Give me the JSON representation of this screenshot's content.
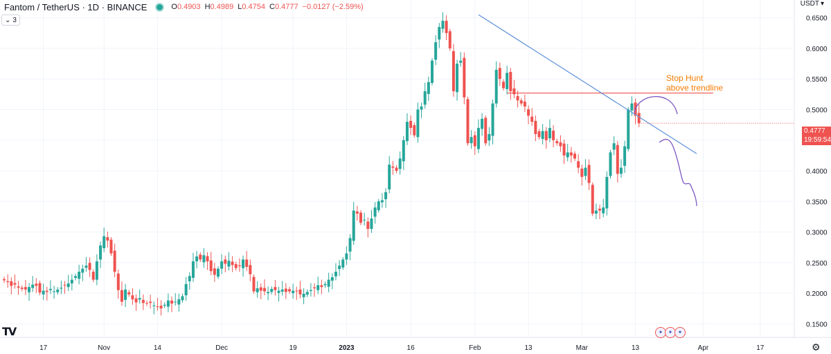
{
  "header": {
    "title": "Fantom / TetherUS · 1D · BINANCE",
    "ohlc": [
      {
        "k": "O",
        "v": "0.4903"
      },
      {
        "k": "H",
        "v": "0.4989"
      },
      {
        "k": "L",
        "v": "0.4754"
      },
      {
        "k": "C",
        "v": "0.4777"
      }
    ],
    "change": "−0.0127 (−2.59%)",
    "indicator_count": "3",
    "currency": "USDT"
  },
  "last_price": {
    "price": "0.4777",
    "countdown": "19:59:54"
  },
  "colors": {
    "up": "#26a69a",
    "down": "#ef5350",
    "trendline": "#5b8fd9",
    "hline": "#ef5350",
    "drawing": "#7e57c2",
    "annotation": "#f57c00"
  },
  "chart_data": {
    "type": "candlestick",
    "title": "Fantom / TetherUS · 1D · BINANCE",
    "ylim": [
      0.13,
      0.67
    ],
    "y_ticks": [
      "0.6500",
      "0.6000",
      "0.5500",
      "0.5000",
      "0.4500",
      "0.4000",
      "0.3500",
      "0.3000",
      "0.2500",
      "0.2000",
      "0.1500"
    ],
    "x_ticks": [
      "17",
      "Nov",
      "14",
      "Dec",
      "19",
      "2023",
      "16",
      "Feb",
      "13",
      "Mar",
      "13",
      "Apr",
      "17"
    ],
    "grid": true,
    "annotations": [
      {
        "text": "Stop Hunt",
        "color": "#f57c00"
      },
      {
        "text": "above trendline",
        "color": "#f57c00"
      }
    ],
    "horizontal_line": {
      "price": 0.527
    },
    "trendline": {
      "from_price": 0.655,
      "to_price": 0.428
    },
    "close": [
      0.221,
      0.218,
      0.212,
      0.214,
      0.209,
      0.207,
      0.206,
      0.21,
      0.214,
      0.212,
      0.201,
      0.204,
      0.202,
      0.207,
      0.203,
      0.206,
      0.209,
      0.213,
      0.216,
      0.222,
      0.228,
      0.235,
      0.24,
      0.245,
      0.238,
      0.222,
      0.252,
      0.278,
      0.293,
      0.286,
      0.265,
      0.235,
      0.205,
      0.186,
      0.206,
      0.198,
      0.19,
      0.185,
      0.192,
      0.184,
      0.183,
      0.184,
      0.18,
      0.178,
      0.175,
      0.181,
      0.188,
      0.183,
      0.186,
      0.19,
      0.195,
      0.215,
      0.228,
      0.252,
      0.26,
      0.255,
      0.262,
      0.252,
      0.236,
      0.23,
      0.24,
      0.252,
      0.248,
      0.253,
      0.246,
      0.241,
      0.244,
      0.255,
      0.243,
      0.231,
      0.203,
      0.208,
      0.204,
      0.203,
      0.202,
      0.207,
      0.205,
      0.204,
      0.206,
      0.202,
      0.203,
      0.204,
      0.203,
      0.198,
      0.199,
      0.202,
      0.205,
      0.208,
      0.213,
      0.21,
      0.215,
      0.222,
      0.226,
      0.235,
      0.245,
      0.255,
      0.265,
      0.29,
      0.335,
      0.33,
      0.315,
      0.32,
      0.305,
      0.322,
      0.34,
      0.35,
      0.352,
      0.365,
      0.41,
      0.405,
      0.4,
      0.42,
      0.45,
      0.48,
      0.47,
      0.458,
      0.5,
      0.505,
      0.53,
      0.545,
      0.58,
      0.61,
      0.635,
      0.645,
      0.625,
      0.6,
      0.53,
      0.575,
      0.58,
      0.52,
      0.445,
      0.455,
      0.44,
      0.47,
      0.485,
      0.445,
      0.46,
      0.51,
      0.565,
      0.55,
      0.535,
      0.56,
      0.53,
      0.525,
      0.515,
      0.51,
      0.505,
      0.49,
      0.48,
      0.46,
      0.455,
      0.465,
      0.45,
      0.47,
      0.45,
      0.445,
      0.44,
      0.425,
      0.43,
      0.425,
      0.42,
      0.405,
      0.39,
      0.405,
      0.38,
      0.33,
      0.335,
      0.335,
      0.34,
      0.39,
      0.43,
      0.445,
      0.395,
      0.405,
      0.44,
      0.5,
      0.51,
      0.49,
      0.4777
    ]
  },
  "icons": {
    "logo": "tradingview-logo-icon",
    "settings": "gear-icon",
    "events": "economic-events-icon"
  }
}
